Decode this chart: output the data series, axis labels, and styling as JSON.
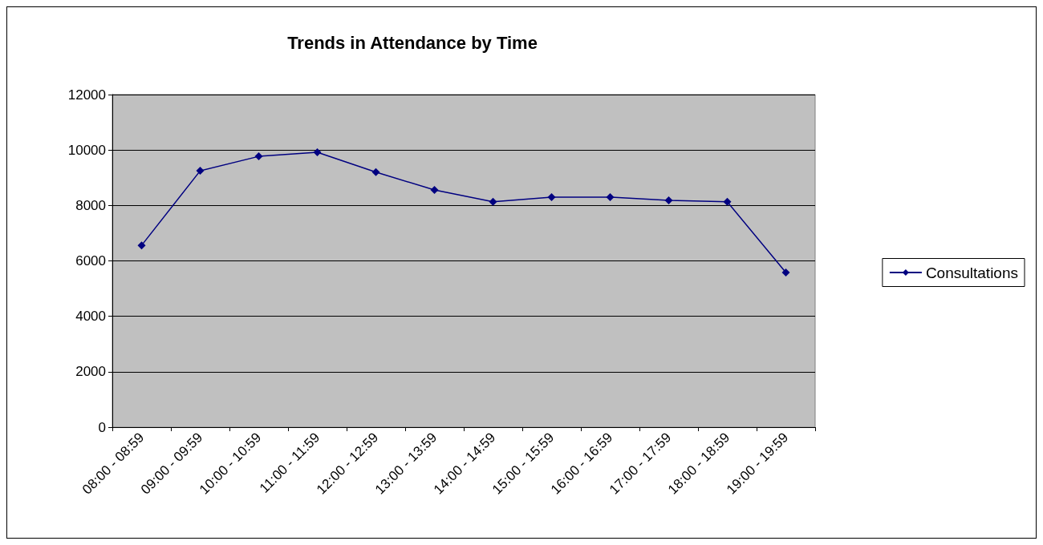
{
  "chart_data": {
    "type": "line",
    "title": "Trends in Attendance by Time",
    "categories": [
      "08:00 - 08:59",
      "09:00 - 09:59",
      "10:00 - 10:59",
      "11:00 - 11:59",
      "12:00 - 12:59",
      "13:00 - 13:59",
      "14:00 - 14:59",
      "15:00 - 15:59",
      "16:00 - 16:59",
      "17:00 - 17:59",
      "18:00 - 18:59",
      "19:00 - 19:59"
    ],
    "series": [
      {
        "name": "Consultations",
        "color": "#000080",
        "values": [
          6560,
          9250,
          9770,
          9920,
          9200,
          8560,
          8130,
          8300,
          8300,
          8180,
          8130,
          5580
        ]
      }
    ],
    "ylim": [
      0,
      12000
    ],
    "yticks": [
      0,
      2000,
      4000,
      6000,
      8000,
      10000,
      12000
    ],
    "grid": "y",
    "legend": "right",
    "marker": "diamond",
    "line_style": "solid"
  }
}
